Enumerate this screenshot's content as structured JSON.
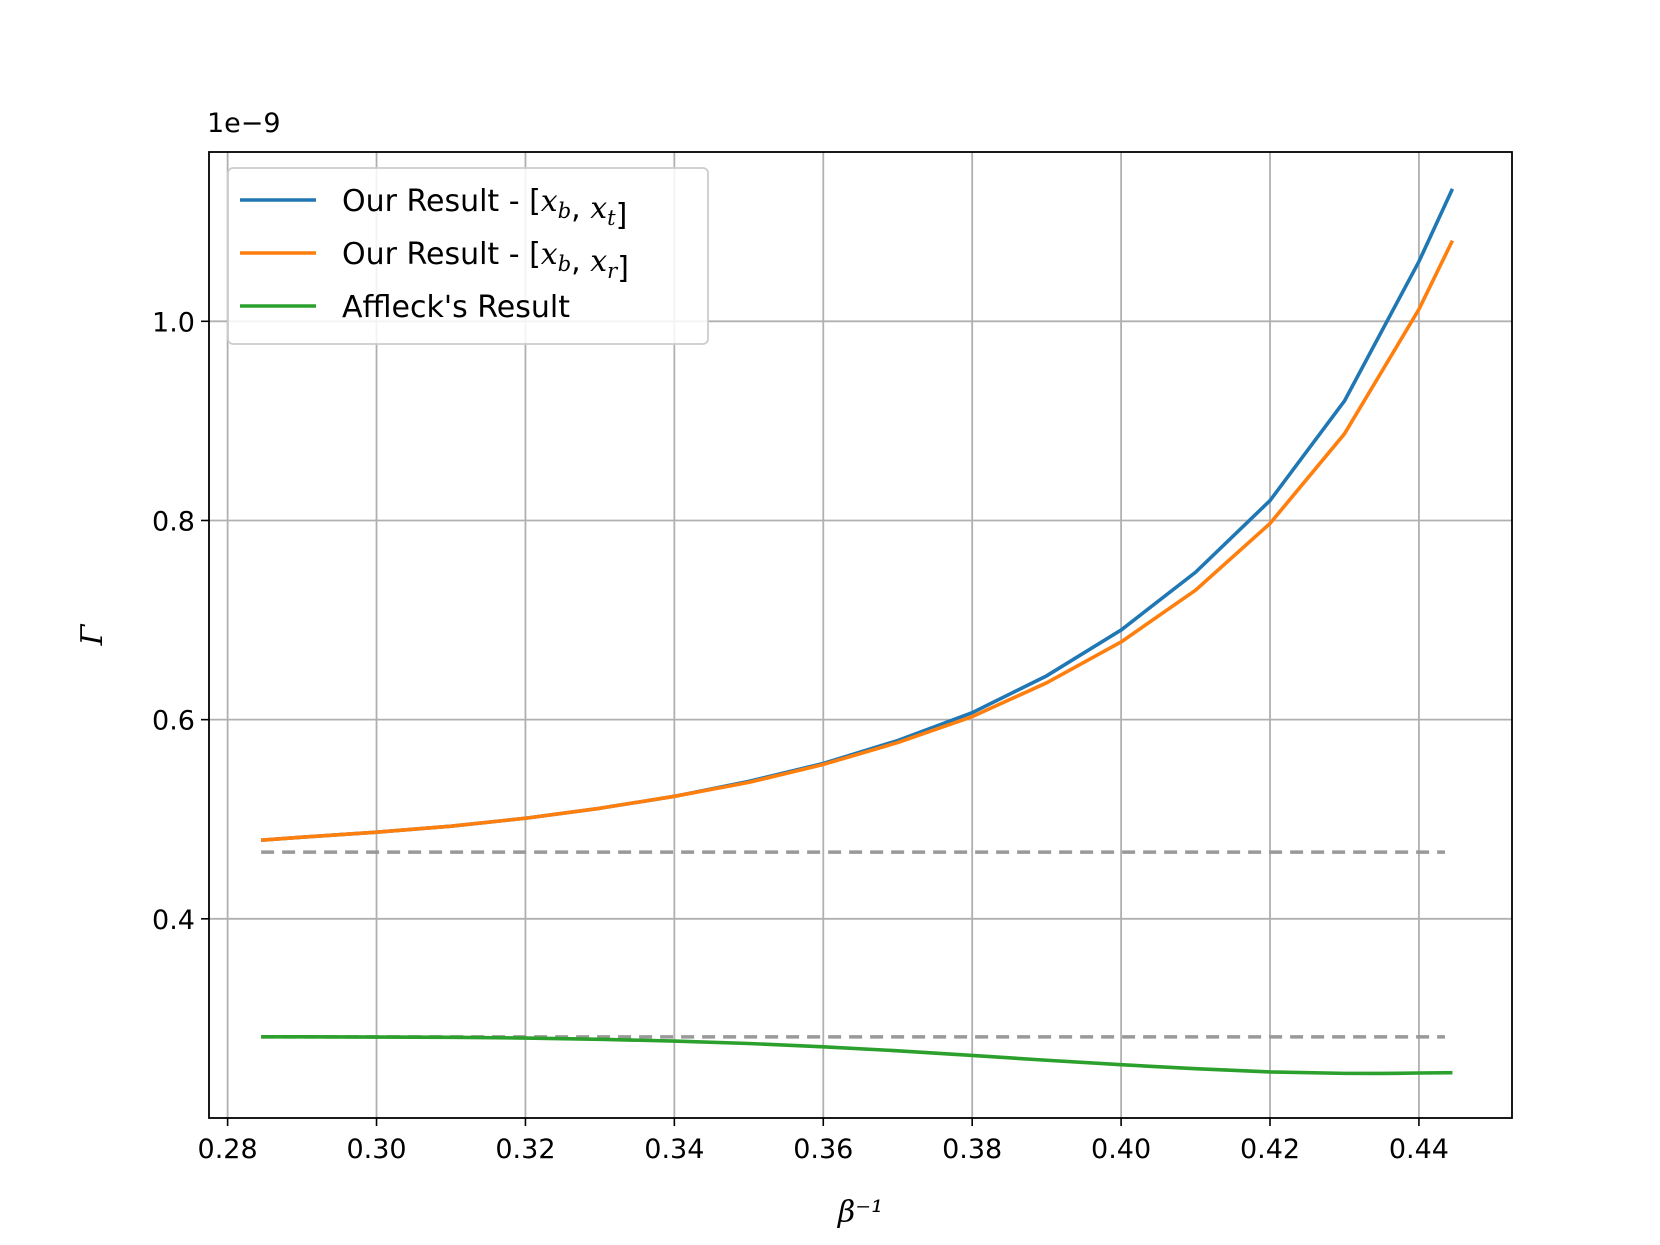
{
  "chart_data": {
    "type": "line",
    "title": "",
    "xlabel": "β⁻¹",
    "ylabel": "Γ",
    "y_offset_text": "1e−9",
    "xlim": [
      0.2775,
      0.4525
    ],
    "ylim": [
      0.2,
      1.17
    ],
    "y_scale_factor": 1e-09,
    "grid": true,
    "legend_position": "upper-left",
    "x_ticks": [
      0.28,
      0.3,
      0.32,
      0.34,
      0.36,
      0.38,
      0.4,
      0.42,
      0.44
    ],
    "x_tick_labels": [
      "0.28",
      "0.30",
      "0.32",
      "0.34",
      "0.36",
      "0.38",
      "0.40",
      "0.42",
      "0.44"
    ],
    "y_ticks": [
      0.4,
      0.6,
      0.8,
      1.0
    ],
    "y_tick_labels": [
      "0.4",
      "0.6",
      "0.8",
      "1.0"
    ],
    "colors": {
      "blue": "#1f77b4",
      "orange": "#ff7f0e",
      "green": "#2ca02c",
      "dashed": "#999999",
      "grid": "#b0b0b0"
    },
    "legend": [
      {
        "prefix": "Our Result - [",
        "m1": "x",
        "s1": "b",
        "sep": ", ",
        "m2": "x",
        "s2": "t",
        "suffix": "]",
        "color": "#1f77b4"
      },
      {
        "prefix": "Our Result - [",
        "m1": "x",
        "s1": "b",
        "sep": ", ",
        "m2": "x",
        "s2": "r",
        "suffix": "]",
        "color": "#ff7f0e"
      },
      {
        "prefix": "Affleck's Result",
        "m1": "",
        "s1": "",
        "sep": "",
        "m2": "",
        "s2": "",
        "suffix": "",
        "color": "#2ca02c"
      }
    ],
    "series": [
      {
        "color": "#1f77b4",
        "x": [
          0.2845,
          0.29,
          0.3,
          0.31,
          0.32,
          0.33,
          0.34,
          0.35,
          0.36,
          0.37,
          0.38,
          0.39,
          0.4,
          0.41,
          0.42,
          0.43,
          0.44,
          0.4445
        ],
        "y": [
          0.479,
          0.482,
          0.487,
          0.493,
          0.501,
          0.511,
          0.523,
          0.538,
          0.556,
          0.579,
          0.607,
          0.644,
          0.69,
          0.748,
          0.82,
          0.92,
          1.06,
          1.133
        ]
      },
      {
        "color": "#ff7f0e",
        "x": [
          0.2845,
          0.29,
          0.3,
          0.31,
          0.32,
          0.33,
          0.34,
          0.35,
          0.36,
          0.37,
          0.38,
          0.39,
          0.4,
          0.41,
          0.42,
          0.43,
          0.44,
          0.4445
        ],
        "y": [
          0.479,
          0.482,
          0.487,
          0.493,
          0.501,
          0.511,
          0.523,
          0.537,
          0.555,
          0.577,
          0.603,
          0.637,
          0.678,
          0.73,
          0.797,
          0.887,
          1.012,
          1.081
        ]
      },
      {
        "color": "#2ca02c",
        "x": [
          0.2845,
          0.29,
          0.3,
          0.31,
          0.32,
          0.33,
          0.34,
          0.35,
          0.36,
          0.37,
          0.38,
          0.39,
          0.4,
          0.41,
          0.42,
          0.43,
          0.435,
          0.44,
          0.4445
        ],
        "y": [
          0.2815,
          0.2815,
          0.2813,
          0.281,
          0.2803,
          0.279,
          0.2773,
          0.2748,
          0.2715,
          0.2675,
          0.2628,
          0.258,
          0.2535,
          0.2495,
          0.2463,
          0.2448,
          0.2447,
          0.2452,
          0.2455
        ]
      }
    ],
    "reference_lines": [
      {
        "y": 0.467,
        "x_range": [
          0.2845,
          0.4435
        ],
        "style": "dashed",
        "color": "#999999"
      },
      {
        "y": 0.2815,
        "x_range": [
          0.2845,
          0.4435
        ],
        "style": "dashed",
        "color": "#999999"
      }
    ]
  }
}
